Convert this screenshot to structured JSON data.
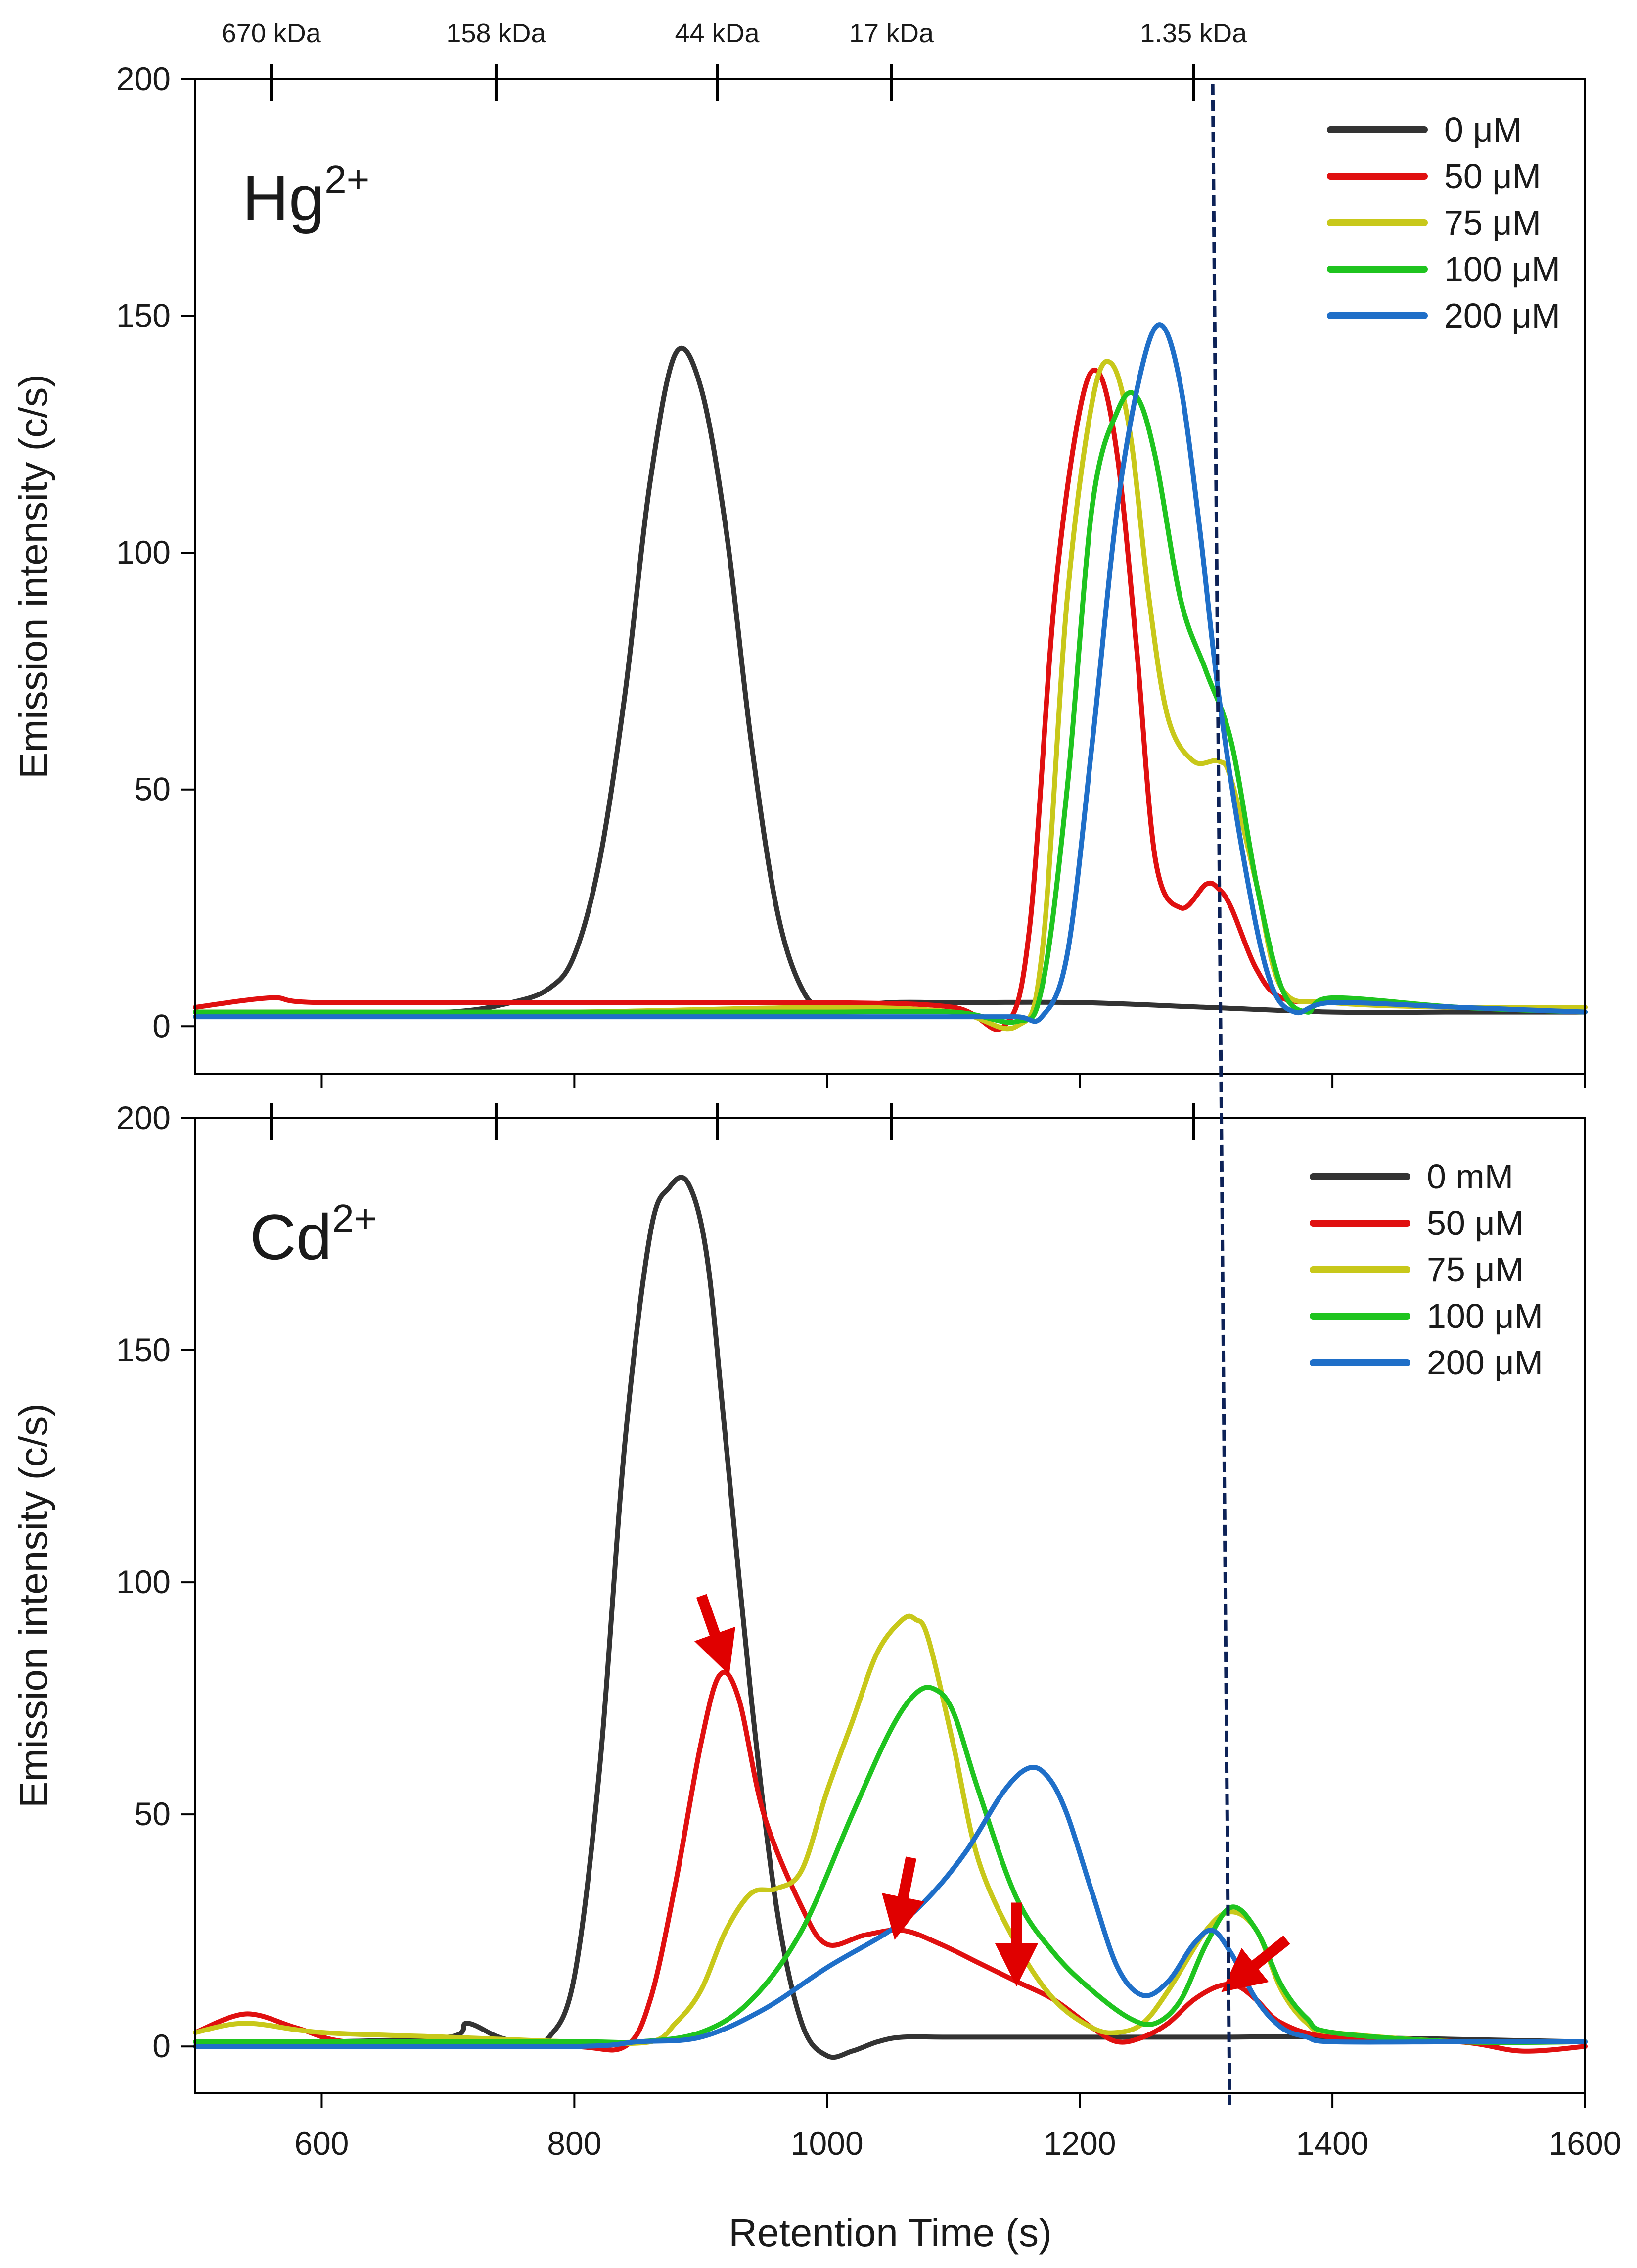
{
  "figure": {
    "xlabel": "Retention Time (s)",
    "colors": {
      "black": "#333333",
      "red": "#e01010",
      "yellow": "#c8c81a",
      "green": "#1fc41f",
      "blue": "#1f6fc8",
      "marker": "#0d2257",
      "arrow": "#e00000"
    }
  },
  "chart_data": [
    {
      "type": "line",
      "panel": "top",
      "ion_base": "Hg",
      "ion_charge": "2+",
      "ylabel": "Emission intensity (c/s)",
      "xlim": [
        500,
        1600
      ],
      "ylim": [
        -10,
        200
      ],
      "xticks": [
        600,
        800,
        1000,
        1200,
        1400,
        1600
      ],
      "yticks": [
        0,
        50,
        100,
        150,
        200
      ],
      "x_tick_labels_shown": false,
      "mw_markers": [
        {
          "label": "670 kDa",
          "x": 560
        },
        {
          "label": "158 kDa",
          "x": 738
        },
        {
          "label": "44 kDa",
          "x": 913
        },
        {
          "label": "17 kDa",
          "x": 1051
        },
        {
          "label": "1.35 kDa",
          "x": 1290
        }
      ],
      "legend_position": "top-right",
      "series": [
        {
          "name": "0 μM",
          "color_key": "black",
          "x": [
            500,
            600,
            700,
            750,
            780,
            800,
            820,
            840,
            860,
            880,
            900,
            920,
            940,
            960,
            980,
            1000,
            1050,
            1100,
            1200,
            1300,
            1400,
            1500,
            1600
          ],
          "y": [
            3,
            3,
            3,
            5,
            8,
            15,
            35,
            70,
            115,
            142,
            135,
            105,
            60,
            25,
            8,
            4,
            5,
            5,
            5,
            4,
            3,
            3,
            3
          ]
        },
        {
          "name": "50 μM",
          "color_key": "red",
          "x": [
            500,
            560,
            600,
            800,
            1000,
            1100,
            1140,
            1160,
            1180,
            1200,
            1215,
            1230,
            1245,
            1260,
            1280,
            1300,
            1310,
            1320,
            1340,
            1360,
            1400,
            1500,
            1600
          ],
          "y": [
            4,
            6,
            5,
            5,
            5,
            4,
            0,
            20,
            90,
            130,
            138,
            120,
            80,
            35,
            25,
            30,
            29,
            25,
            12,
            6,
            5,
            4,
            4
          ]
        },
        {
          "name": "75 μM",
          "color_key": "yellow",
          "x": [
            500,
            600,
            800,
            1000,
            1100,
            1150,
            1170,
            1190,
            1210,
            1225,
            1240,
            1255,
            1270,
            1290,
            1310,
            1320,
            1340,
            1360,
            1400,
            1500,
            1600
          ],
          "y": [
            3,
            3,
            3,
            4,
            3,
            0,
            15,
            90,
            132,
            140,
            125,
            90,
            65,
            56,
            56,
            52,
            30,
            8,
            5,
            4,
            4
          ]
        },
        {
          "name": "100 μM",
          "color_key": "green",
          "x": [
            500,
            600,
            800,
            1000,
            1100,
            1150,
            1170,
            1190,
            1210,
            1230,
            1245,
            1260,
            1280,
            1300,
            1320,
            1340,
            1360,
            1380,
            1400,
            1500,
            1600
          ],
          "y": [
            3,
            3,
            3,
            3,
            3,
            1,
            8,
            50,
            110,
            130,
            133,
            120,
            90,
            75,
            60,
            30,
            8,
            3,
            6,
            4,
            3
          ]
        },
        {
          "name": "200 μM",
          "color_key": "blue",
          "x": [
            500,
            600,
            800,
            1000,
            1100,
            1150,
            1170,
            1190,
            1210,
            1230,
            1250,
            1265,
            1280,
            1295,
            1310,
            1330,
            1350,
            1370,
            1400,
            1500,
            1600
          ],
          "y": [
            2,
            2,
            2,
            2,
            2,
            2,
            2,
            15,
            60,
            110,
            140,
            148,
            135,
            105,
            70,
            35,
            10,
            3,
            5,
            4,
            3
          ]
        }
      ]
    },
    {
      "type": "line",
      "panel": "bottom",
      "ion_base": "Cd",
      "ion_charge": "2+",
      "ylabel": "Emission intensity (c/s)",
      "xlim": [
        500,
        1600
      ],
      "ylim": [
        -10,
        200
      ],
      "xticks": [
        600,
        800,
        1000,
        1200,
        1400,
        1600
      ],
      "yticks": [
        0,
        50,
        100,
        150,
        200
      ],
      "x_tick_labels_shown": true,
      "mw_markers": [
        {
          "label": "",
          "x": 560
        },
        {
          "label": "",
          "x": 738
        },
        {
          "label": "",
          "x": 913
        },
        {
          "label": "",
          "x": 1051
        },
        {
          "label": "",
          "x": 1290
        }
      ],
      "legend_position": "top-right",
      "series": [
        {
          "name": "0 mM",
          "color_key": "black",
          "x": [
            500,
            600,
            700,
            715,
            740,
            760,
            780,
            800,
            820,
            840,
            860,
            875,
            890,
            905,
            920,
            940,
            960,
            980,
            1000,
            1020,
            1040,
            1060,
            1100,
            1200,
            1300,
            1400,
            1600
          ],
          "y": [
            1,
            1,
            2,
            5,
            2,
            1,
            2,
            15,
            60,
            130,
            175,
            185,
            186,
            170,
            130,
            75,
            30,
            5,
            -2,
            -1,
            1,
            2,
            2,
            2,
            2,
            2,
            1
          ]
        },
        {
          "name": "50 μM",
          "color_key": "red",
          "x": [
            500,
            540,
            580,
            620,
            700,
            800,
            840,
            860,
            880,
            900,
            915,
            930,
            950,
            980,
            1000,
            1030,
            1060,
            1090,
            1120,
            1150,
            1180,
            1210,
            1230,
            1250,
            1270,
            1290,
            1310,
            1325,
            1340,
            1360,
            1400,
            1500,
            1550,
            1600
          ],
          "y": [
            3,
            7,
            4,
            1,
            1,
            0,
            0,
            10,
            35,
            65,
            80,
            75,
            50,
            30,
            22,
            24,
            25,
            22,
            18,
            14,
            10,
            4,
            1,
            2,
            5,
            10,
            13,
            13,
            10,
            5,
            2,
            1,
            -1,
            0
          ]
        },
        {
          "name": "75 μM",
          "color_key": "yellow",
          "x": [
            500,
            540,
            600,
            700,
            800,
            860,
            880,
            900,
            920,
            940,
            960,
            980,
            1000,
            1020,
            1040,
            1060,
            1070,
            1080,
            1100,
            1120,
            1150,
            1180,
            1210,
            1230,
            1250,
            1270,
            1300,
            1320,
            1340,
            1360,
            1380,
            1400,
            1500,
            1600
          ],
          "y": [
            3,
            5,
            3,
            2,
            1,
            1,
            5,
            12,
            25,
            33,
            34,
            38,
            55,
            70,
            85,
            92,
            92,
            88,
            65,
            40,
            22,
            10,
            4,
            3,
            5,
            12,
            25,
            29,
            25,
            12,
            5,
            3,
            1,
            1
          ]
        },
        {
          "name": "100 μM",
          "color_key": "green",
          "x": [
            500,
            600,
            800,
            850,
            900,
            940,
            980,
            1020,
            1050,
            1070,
            1085,
            1100,
            1120,
            1150,
            1180,
            1210,
            1240,
            1260,
            1280,
            1300,
            1320,
            1340,
            1360,
            1380,
            1400,
            1500,
            1600
          ],
          "y": [
            1,
            1,
            1,
            1,
            3,
            10,
            25,
            50,
            68,
            76,
            77,
            72,
            55,
            32,
            20,
            12,
            6,
            5,
            10,
            22,
            30,
            25,
            13,
            6,
            3,
            1,
            1
          ]
        },
        {
          "name": "200 μM",
          "color_key": "blue",
          "x": [
            500,
            600,
            800,
            850,
            900,
            950,
            1000,
            1050,
            1080,
            1110,
            1140,
            1160,
            1175,
            1190,
            1210,
            1230,
            1250,
            1270,
            1290,
            1305,
            1320,
            1340,
            1360,
            1380,
            1400,
            1500,
            1600
          ],
          "y": [
            0,
            0,
            0,
            1,
            2,
            8,
            17,
            25,
            32,
            42,
            55,
            60,
            58,
            50,
            33,
            17,
            11,
            14,
            22,
            25,
            20,
            10,
            4,
            2,
            1,
            1,
            1
          ]
        }
      ],
      "annotations": {
        "type": "red-arrows",
        "points_to": [
          [
            920,
            82
          ],
          [
            1055,
            25
          ],
          [
            1150,
            15
          ],
          [
            1318,
            13
          ]
        ]
      }
    }
  ],
  "marker_line": {
    "x": 1310,
    "style": "dashed"
  }
}
